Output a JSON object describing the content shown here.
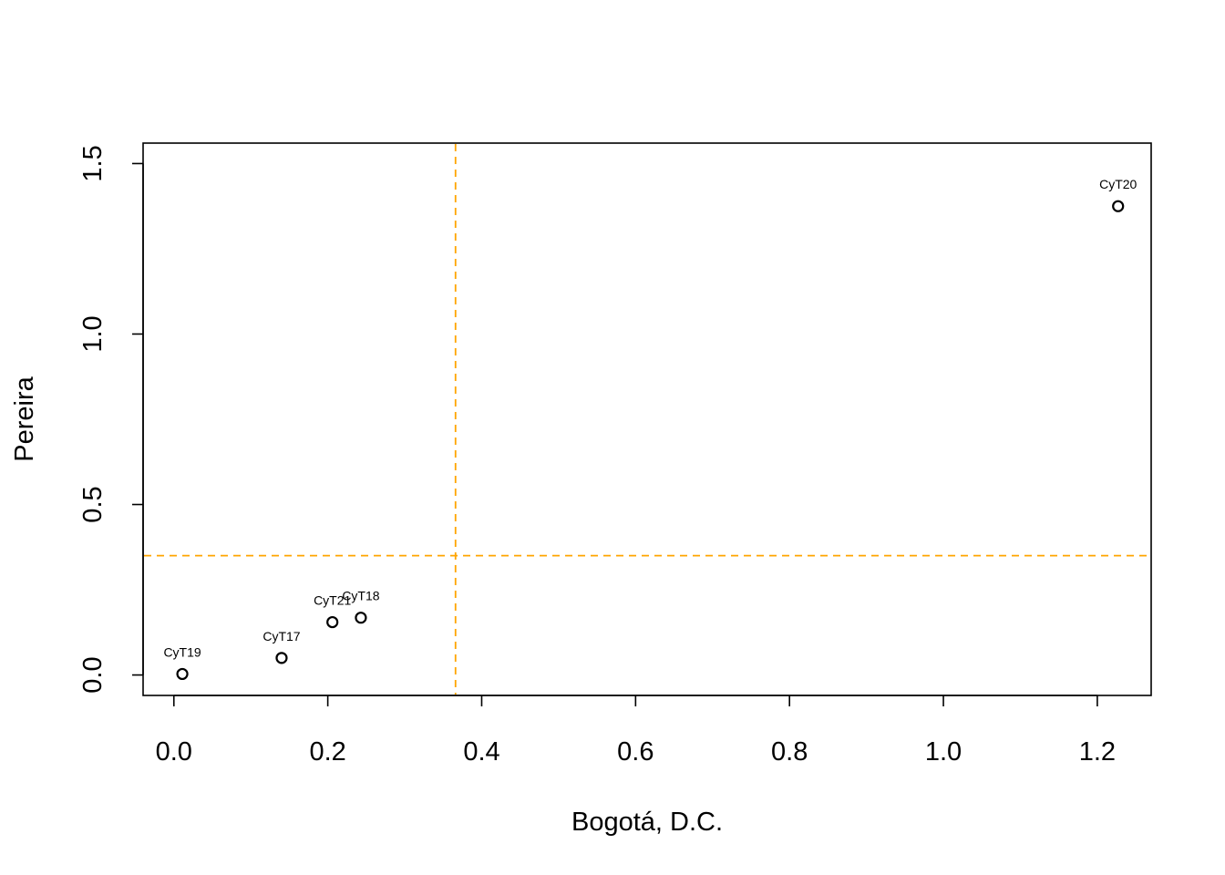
{
  "chart_data": {
    "type": "scatter",
    "title": "",
    "xlabel": "Bogotá, D.C.",
    "ylabel": "Pereira",
    "xlim": [
      -0.04,
      1.27
    ],
    "ylim": [
      -0.06,
      1.56
    ],
    "xticks": [
      "0.0",
      "0.2",
      "0.4",
      "0.6",
      "0.8",
      "1.0",
      "1.2"
    ],
    "yticks": [
      "0.0",
      "0.5",
      "1.0",
      "1.5"
    ],
    "points": [
      {
        "label": "CyT17",
        "x": 0.14,
        "y": 0.05
      },
      {
        "label": "CyT18",
        "x": 0.243,
        "y": 0.168
      },
      {
        "label": "CyT19",
        "x": 0.011,
        "y": 0.003
      },
      {
        "label": "CyT20",
        "x": 1.227,
        "y": 1.375
      },
      {
        "label": "CyT21",
        "x": 0.206,
        "y": 0.155
      }
    ],
    "ref_lines": {
      "vertical_x": 0.366,
      "horizontal_y": 0.35,
      "color": "#FFA500",
      "style": "dashed"
    },
    "grid": false,
    "legend": "none"
  }
}
